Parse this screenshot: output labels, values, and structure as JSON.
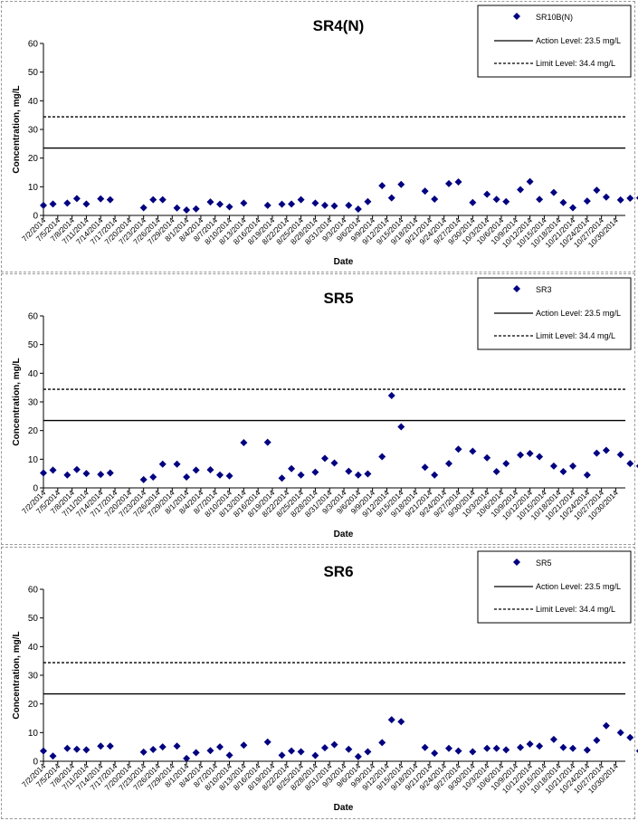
{
  "charts": [
    {
      "title": "SR4(N)",
      "ylabel": "Concentration, mg/L",
      "xlabel": "Date",
      "legend": {
        "series": "SR10B(N)",
        "action": "Action Level: 23.5 mg/L",
        "limit": "Limit Level: 34.4 mg/L"
      }
    },
    {
      "title": "SR5",
      "ylabel": "Concentration, mg/L",
      "xlabel": "Date",
      "legend": {
        "series": "SR3",
        "action": "Action Level: 23.5 mg/L",
        "limit": "Limit Level: 34.4 mg/L"
      }
    },
    {
      "title": "SR6",
      "ylabel": "Concentration, mg/L",
      "xlabel": "Date",
      "legend": {
        "series": "SR5",
        "action": "Action Level: 23.5 mg/L",
        "limit": "Limit Level: 34.4 mg/L"
      }
    }
  ],
  "chart_data": [
    {
      "type": "scatter",
      "title": "SR4(N)",
      "xlabel": "Date",
      "ylabel": "Concentration, mg/L",
      "x_range": [
        "2014-07-02",
        "2014-11-01"
      ],
      "ylim": [
        0,
        60
      ],
      "yticks": [
        0,
        10,
        20,
        30,
        40,
        50,
        60
      ],
      "xticks": [
        "7/2/2014",
        "7/5/2014",
        "7/8/2014",
        "7/11/2014",
        "7/14/2014",
        "7/17/2014",
        "7/20/2014",
        "7/23/2014",
        "7/26/2014",
        "7/29/2014",
        "8/1/2014",
        "8/4/2014",
        "8/7/2014",
        "8/10/2014",
        "8/13/2014",
        "8/16/2014",
        "8/19/2014",
        "8/22/2014",
        "8/25/2014",
        "8/28/2014",
        "8/31/2014",
        "9/3/2014",
        "9/6/2014",
        "9/9/2014",
        "9/12/2014",
        "9/15/2014",
        "9/18/2014",
        "9/21/2014",
        "9/24/2014",
        "9/27/2014",
        "9/30/2014",
        "10/3/2014",
        "10/6/2014",
        "10/9/2014",
        "10/12/2014",
        "10/15/2014",
        "10/18/2014",
        "10/21/2014",
        "10/24/2014",
        "10/27/2014",
        "10/30/2014"
      ],
      "reference_lines": [
        {
          "name": "Action Level: 23.5 mg/L",
          "value": 23.5,
          "style": "solid"
        },
        {
          "name": "Limit Level: 34.4 mg/L",
          "value": 34.4,
          "style": "dashed"
        }
      ],
      "series": [
        {
          "name": "SR10B(N)",
          "marker": "diamond",
          "color": "#000080",
          "points": [
            [
              "2014-07-02",
              3.5
            ],
            [
              "2014-07-04",
              4
            ],
            [
              "2014-07-07",
              4.3
            ],
            [
              "2014-07-09",
              5.9
            ],
            [
              "2014-07-11",
              4
            ],
            [
              "2014-07-14",
              5.8
            ],
            [
              "2014-07-16",
              5.5
            ],
            [
              "2014-07-23",
              2.7
            ],
            [
              "2014-07-25",
              5.5
            ],
            [
              "2014-07-27",
              5.5
            ],
            [
              "2014-07-30",
              2.6
            ],
            [
              "2014-08-01",
              1.9
            ],
            [
              "2014-08-03",
              2.3
            ],
            [
              "2014-08-06",
              4.7
            ],
            [
              "2014-08-08",
              3.9
            ],
            [
              "2014-08-10",
              3
            ],
            [
              "2014-08-13",
              4.3
            ],
            [
              "2014-08-18",
              3.5
            ],
            [
              "2014-08-21",
              3.9
            ],
            [
              "2014-08-23",
              4
            ],
            [
              "2014-08-25",
              5.5
            ],
            [
              "2014-08-28",
              4.3
            ],
            [
              "2014-08-30",
              3.5
            ],
            [
              "2014-09-01",
              3.3
            ],
            [
              "2014-09-04",
              3.5
            ],
            [
              "2014-09-06",
              2.2
            ],
            [
              "2014-09-08",
              4.8
            ],
            [
              "2014-09-11",
              10.4
            ],
            [
              "2014-09-13",
              6.1
            ],
            [
              "2014-09-15",
              10.8
            ],
            [
              "2014-09-20",
              8.5
            ],
            [
              "2014-09-22",
              5.7
            ],
            [
              "2014-09-25",
              11.1
            ],
            [
              "2014-09-27",
              11.7
            ],
            [
              "2014-09-30",
              4.5
            ],
            [
              "2014-10-03",
              7.4
            ],
            [
              "2014-10-05",
              5.6
            ],
            [
              "2014-10-07",
              4.8
            ],
            [
              "2014-10-10",
              9
            ],
            [
              "2014-10-12",
              11.8
            ],
            [
              "2014-10-14",
              5.6
            ],
            [
              "2014-10-17",
              8
            ],
            [
              "2014-10-19",
              4.5
            ],
            [
              "2014-10-21",
              2.7
            ],
            [
              "2014-10-24",
              5
            ],
            [
              "2014-10-26",
              8.8
            ],
            [
              "2014-10-28",
              6.4
            ],
            [
              "2014-10-31",
              5.4
            ],
            [
              "2014-11-02",
              6
            ],
            [
              "2014-11-04",
              6.1
            ]
          ]
        }
      ]
    },
    {
      "type": "scatter",
      "title": "SR5",
      "xlabel": "Date",
      "ylabel": "Concentration, mg/L",
      "x_range": [
        "2014-07-02",
        "2014-11-01"
      ],
      "ylim": [
        0,
        60
      ],
      "yticks": [
        0,
        10,
        20,
        30,
        40,
        50,
        60
      ],
      "xticks": [
        "7/2/2014",
        "7/5/2014",
        "7/8/2014",
        "7/11/2014",
        "7/14/2014",
        "7/17/2014",
        "7/20/2014",
        "7/23/2014",
        "7/26/2014",
        "7/29/2014",
        "8/1/2014",
        "8/4/2014",
        "8/7/2014",
        "8/10/2014",
        "8/13/2014",
        "8/16/2014",
        "8/19/2014",
        "8/22/2014",
        "8/25/2014",
        "8/28/2014",
        "8/31/2014",
        "9/3/2014",
        "9/6/2014",
        "9/9/2014",
        "9/12/2014",
        "9/15/2014",
        "9/18/2014",
        "9/21/2014",
        "9/24/2014",
        "9/27/2014",
        "9/30/2014",
        "10/3/2014",
        "10/6/2014",
        "10/9/2014",
        "10/12/2014",
        "10/15/2014",
        "10/18/2014",
        "10/21/2014",
        "10/24/2014",
        "10/27/2014",
        "10/30/2014"
      ],
      "reference_lines": [
        {
          "name": "Action Level: 23.5 mg/L",
          "value": 23.5,
          "style": "solid"
        },
        {
          "name": "Limit Level: 34.4 mg/L",
          "value": 34.4,
          "style": "dashed"
        }
      ],
      "series": [
        {
          "name": "SR3",
          "marker": "diamond",
          "color": "#000080",
          "points": [
            [
              "2014-07-02",
              5.2
            ],
            [
              "2014-07-04",
              6.2
            ],
            [
              "2014-07-07",
              4.5
            ],
            [
              "2014-07-09",
              6.4
            ],
            [
              "2014-07-11",
              5
            ],
            [
              "2014-07-14",
              4.7
            ],
            [
              "2014-07-16",
              5.2
            ],
            [
              "2014-07-23",
              2.9
            ],
            [
              "2014-07-25",
              3.8
            ],
            [
              "2014-07-27",
              8.3
            ],
            [
              "2014-07-30",
              8.3
            ],
            [
              "2014-08-01",
              3.8
            ],
            [
              "2014-08-03",
              6.2
            ],
            [
              "2014-08-06",
              6.3
            ],
            [
              "2014-08-08",
              4.5
            ],
            [
              "2014-08-10",
              4.2
            ],
            [
              "2014-08-13",
              15.8
            ],
            [
              "2014-08-18",
              15.9
            ],
            [
              "2014-08-21",
              3.4
            ],
            [
              "2014-08-23",
              6.7
            ],
            [
              "2014-08-25",
              4.5
            ],
            [
              "2014-08-28",
              5.5
            ],
            [
              "2014-08-30",
              10.3
            ],
            [
              "2014-09-01",
              8.7
            ],
            [
              "2014-09-04",
              5.8
            ],
            [
              "2014-09-06",
              4.5
            ],
            [
              "2014-09-08",
              4.9
            ],
            [
              "2014-09-11",
              10.9
            ],
            [
              "2014-09-13",
              32.2
            ],
            [
              "2014-09-15",
              21.3
            ],
            [
              "2014-09-20",
              7.2
            ],
            [
              "2014-09-22",
              4.5
            ],
            [
              "2014-09-25",
              8.5
            ],
            [
              "2014-09-27",
              13.5
            ],
            [
              "2014-09-30",
              12.8
            ],
            [
              "2014-10-03",
              10.5
            ],
            [
              "2014-10-05",
              5.7
            ],
            [
              "2014-10-07",
              8.5
            ],
            [
              "2014-10-10",
              11.5
            ],
            [
              "2014-10-12",
              12
            ],
            [
              "2014-10-14",
              10.9
            ],
            [
              "2014-10-17",
              7.6
            ],
            [
              "2014-10-19",
              5.7
            ],
            [
              "2014-10-21",
              7.6
            ],
            [
              "2014-10-24",
              4.5
            ],
            [
              "2014-10-26",
              12.1
            ],
            [
              "2014-10-28",
              13.1
            ],
            [
              "2014-10-31",
              11.6
            ],
            [
              "2014-11-02",
              8.5
            ],
            [
              "2014-11-04",
              7.6
            ]
          ]
        }
      ]
    },
    {
      "type": "scatter",
      "title": "SR6",
      "xlabel": "Date",
      "ylabel": "Concentration, mg/L",
      "x_range": [
        "2014-07-02",
        "2014-11-01"
      ],
      "ylim": [
        0,
        60
      ],
      "yticks": [
        0,
        10,
        20,
        30,
        40,
        50,
        60
      ],
      "xticks": [
        "7/2/2014",
        "7/5/2014",
        "7/8/2014",
        "7/11/2014",
        "7/14/2014",
        "7/17/2014",
        "7/20/2014",
        "7/23/2014",
        "7/26/2014",
        "7/29/2014",
        "8/1/2014",
        "8/4/2014",
        "8/7/2014",
        "8/10/2014",
        "8/13/2014",
        "8/16/2014",
        "8/19/2014",
        "8/22/2014",
        "8/25/2014",
        "8/28/2014",
        "8/31/2014",
        "9/3/2014",
        "9/6/2014",
        "9/9/2014",
        "9/12/2014",
        "9/15/2014",
        "9/18/2014",
        "9/21/2014",
        "9/24/2014",
        "9/27/2014",
        "9/30/2014",
        "10/3/2014",
        "10/6/2014",
        "10/9/2014",
        "10/12/2014",
        "10/15/2014",
        "10/18/2014",
        "10/21/2014",
        "10/24/2014",
        "10/27/2014",
        "10/30/2014"
      ],
      "reference_lines": [
        {
          "name": "Action Level: 23.5 mg/L",
          "value": 23.5,
          "style": "solid"
        },
        {
          "name": "Limit Level: 34.4 mg/L",
          "value": 34.4,
          "style": "dashed"
        }
      ],
      "series": [
        {
          "name": "SR5",
          "marker": "diamond",
          "color": "#000080",
          "points": [
            [
              "2014-07-02",
              3.6
            ],
            [
              "2014-07-04",
              1.8
            ],
            [
              "2014-07-07",
              4.5
            ],
            [
              "2014-07-09",
              4.2
            ],
            [
              "2014-07-11",
              4
            ],
            [
              "2014-07-14",
              5.3
            ],
            [
              "2014-07-16",
              5.3
            ],
            [
              "2014-07-23",
              3.2
            ],
            [
              "2014-07-25",
              4.1
            ],
            [
              "2014-07-27",
              5
            ],
            [
              "2014-07-30",
              5.3
            ],
            [
              "2014-08-01",
              1
            ],
            [
              "2014-08-03",
              3
            ],
            [
              "2014-08-06",
              3.7
            ],
            [
              "2014-08-08",
              5
            ],
            [
              "2014-08-10",
              2.1
            ],
            [
              "2014-08-13",
              5.6
            ],
            [
              "2014-08-18",
              6.7
            ],
            [
              "2014-08-21",
              2.1
            ],
            [
              "2014-08-23",
              3.6
            ],
            [
              "2014-08-25",
              3.3
            ],
            [
              "2014-08-28",
              2
            ],
            [
              "2014-08-30",
              4.7
            ],
            [
              "2014-09-01",
              5.8
            ],
            [
              "2014-09-04",
              4.2
            ],
            [
              "2014-09-06",
              1.6
            ],
            [
              "2014-09-08",
              3.3
            ],
            [
              "2014-09-11",
              6.5
            ],
            [
              "2014-09-13",
              14.5
            ],
            [
              "2014-09-15",
              13.8
            ],
            [
              "2014-09-20",
              4.8
            ],
            [
              "2014-09-22",
              2.8
            ],
            [
              "2014-09-25",
              4.5
            ],
            [
              "2014-09-27",
              3.6
            ],
            [
              "2014-09-30",
              3.3
            ],
            [
              "2014-10-03",
              4.5
            ],
            [
              "2014-10-05",
              4.5
            ],
            [
              "2014-10-07",
              4
            ],
            [
              "2014-10-10",
              4.8
            ],
            [
              "2014-10-12",
              6
            ],
            [
              "2014-10-14",
              5.3
            ],
            [
              "2014-10-17",
              7.6
            ],
            [
              "2014-10-19",
              4.8
            ],
            [
              "2014-10-21",
              4.5
            ],
            [
              "2014-10-24",
              3.9
            ],
            [
              "2014-10-26",
              7.3
            ],
            [
              "2014-10-28",
              12.4
            ],
            [
              "2014-10-31",
              10
            ],
            [
              "2014-11-02",
              8.3
            ],
            [
              "2014-11-04",
              3.6
            ]
          ]
        }
      ]
    }
  ]
}
